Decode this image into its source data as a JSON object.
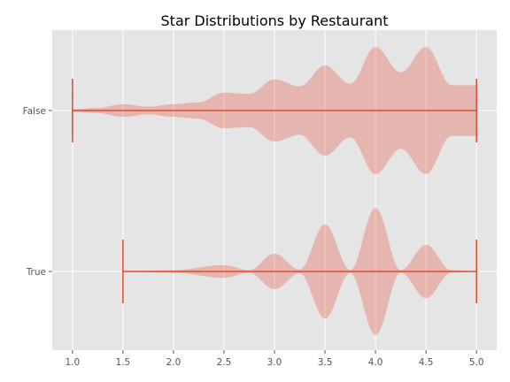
{
  "chart_data": {
    "type": "violin",
    "orientation": "horizontal",
    "title": "Star Distributions by Restaurant",
    "xlabel": "",
    "ylabel": "",
    "xlim": [
      0.8,
      5.2
    ],
    "xticks": [
      1.0,
      1.5,
      2.0,
      2.5,
      3.0,
      3.5,
      4.0,
      4.5,
      5.0
    ],
    "xtick_labels": [
      "1.0",
      "1.5",
      "2.0",
      "2.5",
      "3.0",
      "3.5",
      "4.0",
      "4.5",
      "5.0"
    ],
    "categories": [
      "False",
      "True"
    ],
    "grid": true,
    "style": "ggplot",
    "colors": {
      "violin_fill": "#E24A33",
      "violin_alpha": 0.3,
      "line": "#E24A33",
      "background": "#E5E5E5",
      "grid": "#FFFFFF"
    },
    "series": [
      {
        "category": "False",
        "min": 1.0,
        "max": 5.0,
        "density": [
          [
            1.0,
            0.02
          ],
          [
            1.25,
            0.04
          ],
          [
            1.5,
            0.1
          ],
          [
            1.75,
            0.06
          ],
          [
            2.0,
            0.1
          ],
          [
            2.25,
            0.13
          ],
          [
            2.5,
            0.28
          ],
          [
            2.75,
            0.26
          ],
          [
            3.0,
            0.49
          ],
          [
            3.25,
            0.38
          ],
          [
            3.5,
            0.71
          ],
          [
            3.75,
            0.42
          ],
          [
            4.0,
            1.0
          ],
          [
            4.25,
            0.6
          ],
          [
            4.5,
            1.0
          ],
          [
            4.75,
            0.4
          ],
          [
            5.0,
            0.4
          ]
        ]
      },
      {
        "category": "True",
        "min": 1.5,
        "max": 5.0,
        "density": [
          [
            1.5,
            0.0
          ],
          [
            2.0,
            0.02
          ],
          [
            2.5,
            0.1
          ],
          [
            2.75,
            0.02
          ],
          [
            3.0,
            0.28
          ],
          [
            3.25,
            0.03
          ],
          [
            3.5,
            0.74
          ],
          [
            3.75,
            0.02
          ],
          [
            4.0,
            1.0
          ],
          [
            4.25,
            0.02
          ],
          [
            4.5,
            0.42
          ],
          [
            4.75,
            0.02
          ],
          [
            5.0,
            0.0
          ]
        ]
      }
    ]
  }
}
